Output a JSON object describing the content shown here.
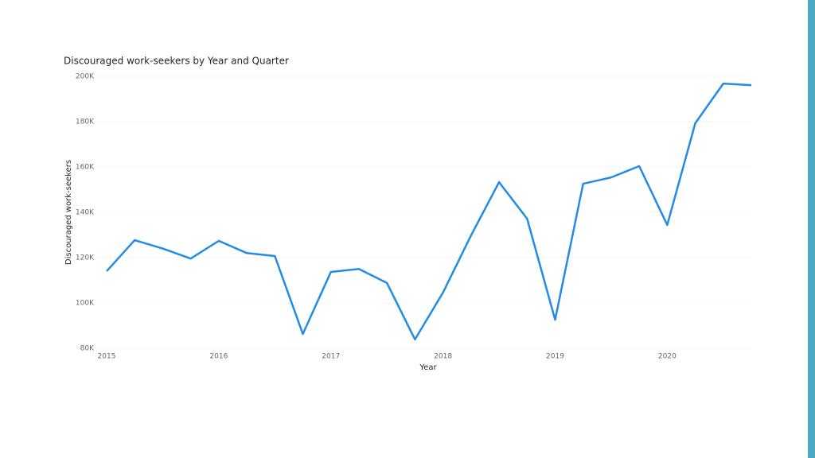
{
  "chart_data": {
    "type": "line",
    "title": "Discouraged work-seekers by Year and Quarter",
    "x_label": "Year",
    "y_label": "Discouraged work-seekers",
    "x": [
      2015,
      2015.25,
      2015.5,
      2015.75,
      2016,
      2016.25,
      2016.5,
      2016.75,
      2017,
      2017.25,
      2017.5,
      2017.75,
      2018,
      2018.25,
      2018.5,
      2018.75,
      2019,
      2019.25,
      2019.5,
      2019.75,
      2020,
      2020.25,
      2020.5,
      2020.75
    ],
    "series": [
      {
        "name": "Discouraged work-seekers",
        "color": "#238be6",
        "values": [
          114000,
          127700,
          124000,
          119600,
          127400,
          122000,
          120700,
          86300,
          113700,
          115000,
          108800,
          83900,
          104600,
          129800,
          153300,
          137200,
          92600,
          152600,
          155400,
          160400,
          134400,
          179300,
          196800,
          196100
        ]
      }
    ],
    "xlim": [
      2015,
      2020.75
    ],
    "xticks": [
      2015,
      2016,
      2017,
      2018,
      2019,
      2020
    ],
    "ylim": [
      80000,
      200000
    ],
    "yticks": [
      {
        "value": 80000,
        "label": "80K"
      },
      {
        "value": 100000,
        "label": "100K"
      },
      {
        "value": 120000,
        "label": "120K"
      },
      {
        "value": 140000,
        "label": "140K"
      },
      {
        "value": 160000,
        "label": "160K"
      },
      {
        "value": 180000,
        "label": "180K"
      },
      {
        "value": 200000,
        "label": "200K"
      }
    ],
    "grid": true
  }
}
